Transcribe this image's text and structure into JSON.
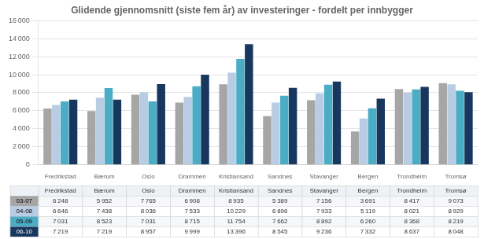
{
  "chart_data": {
    "type": "bar",
    "title": "Glidende gjennomsnitt (siste fem år) av investeringer - fordelt per innbygger",
    "categories": [
      "Fredrikstad",
      "Bærum",
      "Oslo",
      "Drammen",
      "Kristiansand",
      "Sandnes",
      "Stavanger",
      "Bergen",
      "Trondheim",
      "Tromsø"
    ],
    "series": [
      {
        "name": "03-07",
        "color": "#a6a6a6",
        "values": [
          6248,
          5952,
          7765,
          6908,
          8935,
          5389,
          7156,
          3691,
          8417,
          9073
        ],
        "value_labels": [
          "6 248",
          "5 952",
          "7 765",
          "6 908",
          "8 935",
          "5 389",
          "7 156",
          "3 691",
          "8 417",
          "9 073"
        ]
      },
      {
        "name": "04-08",
        "color": "#b8cce4",
        "values": [
          6646,
          7438,
          8036,
          7533,
          10229,
          6896,
          7933,
          5119,
          8021,
          8929
        ],
        "value_labels": [
          "6 646",
          "7 438",
          "8 036",
          "7 533",
          "10 229",
          "6 896",
          "7 933",
          "5 119",
          "8 021",
          "8 929"
        ]
      },
      {
        "name": "05-09",
        "color": "#4bacc6",
        "values": [
          7031,
          8523,
          7031,
          8715,
          11754,
          7662,
          8892,
          6260,
          8368,
          8219
        ],
        "value_labels": [
          "7 031",
          "8 523",
          "7 031",
          "8 715",
          "11 754",
          "7 662",
          "8 892",
          "6 260",
          "8 368",
          "8 219"
        ]
      },
      {
        "name": "06-10",
        "color": "#17375e",
        "values": [
          7219,
          7219,
          8957,
          9999,
          13396,
          8545,
          9236,
          7332,
          8637,
          8048
        ],
        "value_labels": [
          "7 219",
          "7 219",
          "8 957",
          "9 999",
          "13 396",
          "8 545",
          "9 236",
          "7 332",
          "8 637",
          "8 048"
        ]
      }
    ],
    "ylim": [
      0,
      16000
    ],
    "yticks": [
      0,
      {
        "value": 2000,
        "label": "2 000"
      },
      {
        "value": 4000,
        "label": "4 000"
      },
      {
        "value": 6000,
        "label": "6 000"
      },
      {
        "value": 8000,
        "label": "8 000"
      },
      {
        "value": 10000,
        "label": "10 000"
      },
      {
        "value": 12000,
        "label": "12 000"
      },
      {
        "value": 14000,
        "label": "14 000"
      },
      {
        "value": 16000,
        "label": "16 000"
      }
    ],
    "grid": true
  }
}
